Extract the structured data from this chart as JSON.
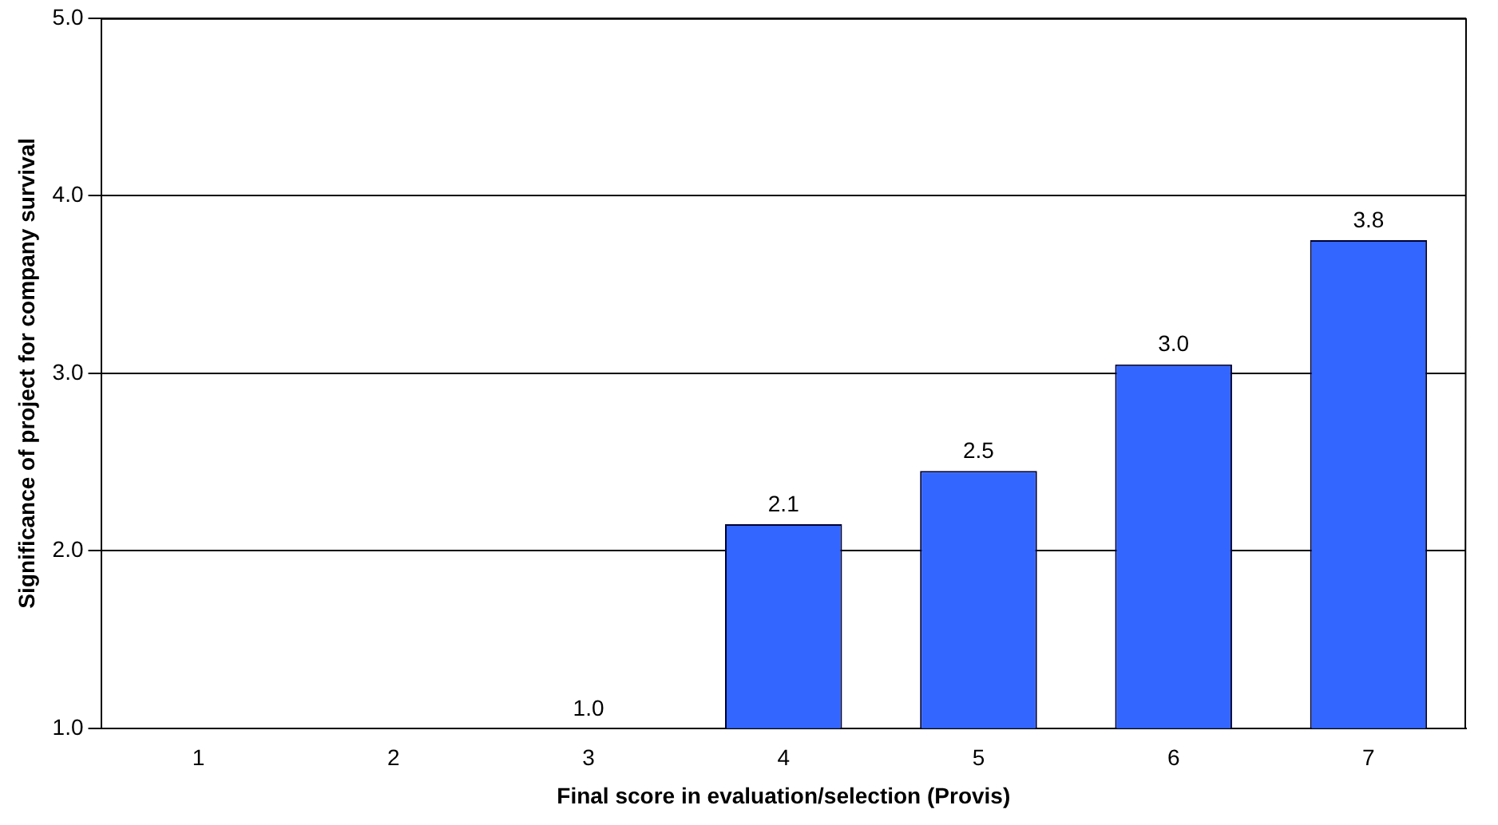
{
  "chart_data": {
    "type": "bar",
    "xlabel": "Final score in evaluation/selection (Provis)",
    "ylabel": "Significance of project for company survival",
    "categories": [
      "1",
      "2",
      "3",
      "4",
      "5",
      "6",
      "7"
    ],
    "values": [
      null,
      null,
      1.0,
      2.15,
      2.45,
      3.05,
      3.75
    ],
    "value_labels": [
      null,
      null,
      "1.0",
      "2.1",
      "2.5",
      "3.0",
      "3.8"
    ],
    "color": "#3366ff",
    "ylim": [
      1,
      5
    ],
    "yticks": [
      {
        "value": 1,
        "label": "1.0"
      },
      {
        "value": 2,
        "label": "2.0"
      },
      {
        "value": 3,
        "label": "3.0"
      },
      {
        "value": 4,
        "label": "4.0"
      },
      {
        "value": 5,
        "label": "5.0"
      }
    ],
    "grid": "y"
  }
}
